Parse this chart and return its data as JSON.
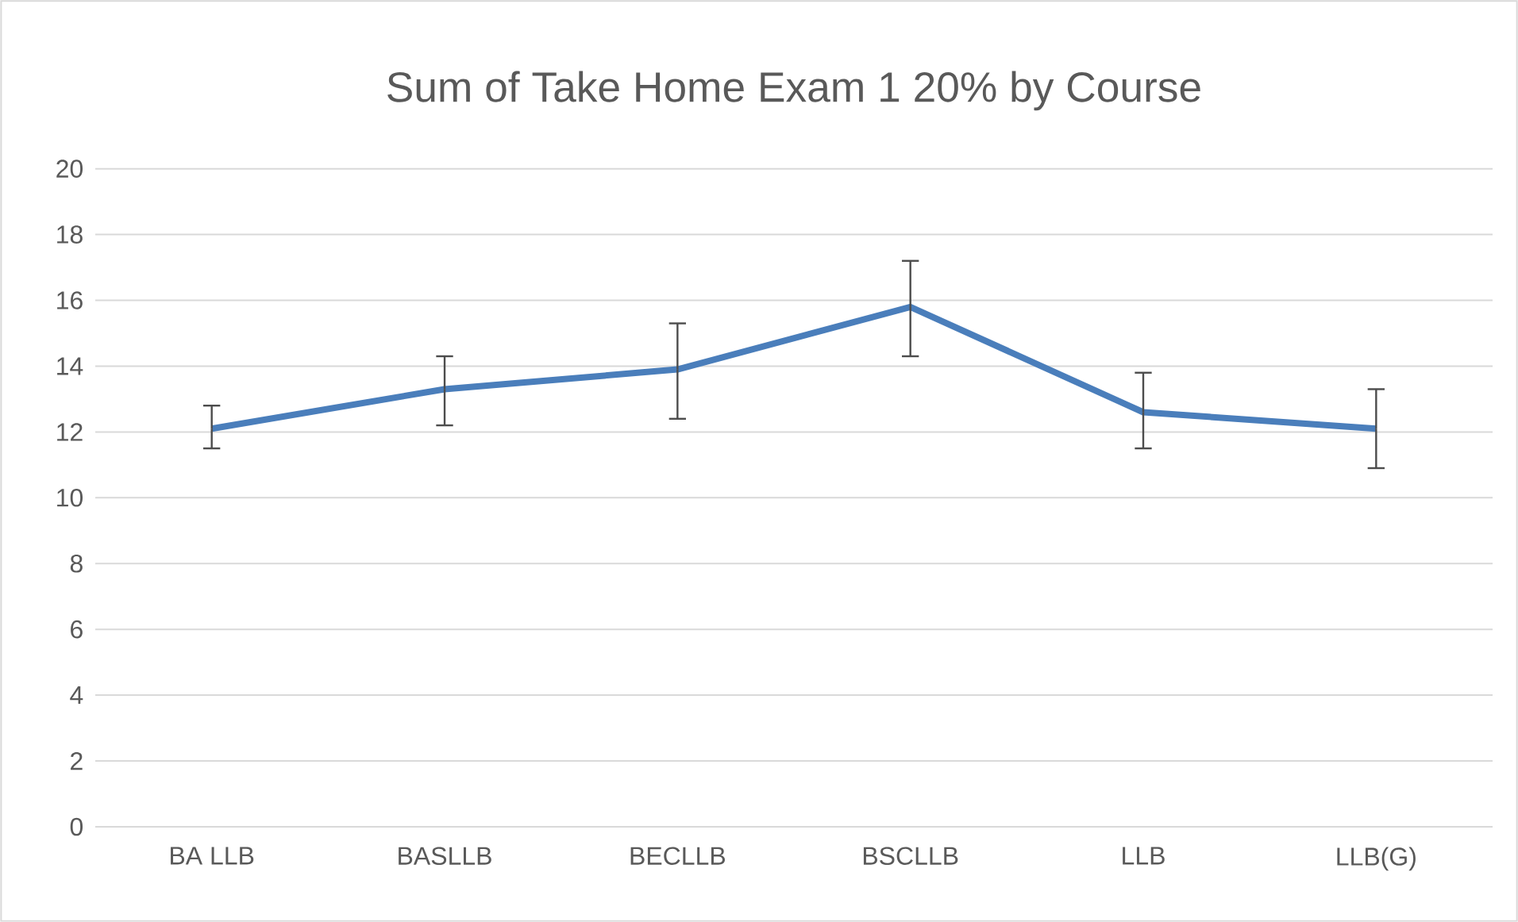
{
  "chart_data": {
    "type": "line",
    "title": "Sum of Take Home Exam 1 20% by Course",
    "categories": [
      "BA LLB",
      "BASLLB",
      "BECLLB",
      "BSCLLB",
      "LLB",
      "LLB(G)"
    ],
    "series": [
      {
        "color": "#4a7ebb",
        "values": [
          12.1,
          13.3,
          13.9,
          15.8,
          12.6,
          12.1
        ],
        "errors": [
          [
            11.5,
            12.8
          ],
          [
            12.2,
            14.3
          ],
          [
            12.4,
            15.3
          ],
          [
            14.3,
            17.2
          ],
          [
            11.5,
            13.8
          ],
          [
            10.9,
            13.3
          ]
        ]
      }
    ],
    "ylim": [
      0,
      20
    ],
    "yticks": [
      0,
      2,
      4,
      6,
      8,
      10,
      12,
      14,
      16,
      18,
      20
    ],
    "grid": "y",
    "marker": "none",
    "line_style": "solid"
  }
}
